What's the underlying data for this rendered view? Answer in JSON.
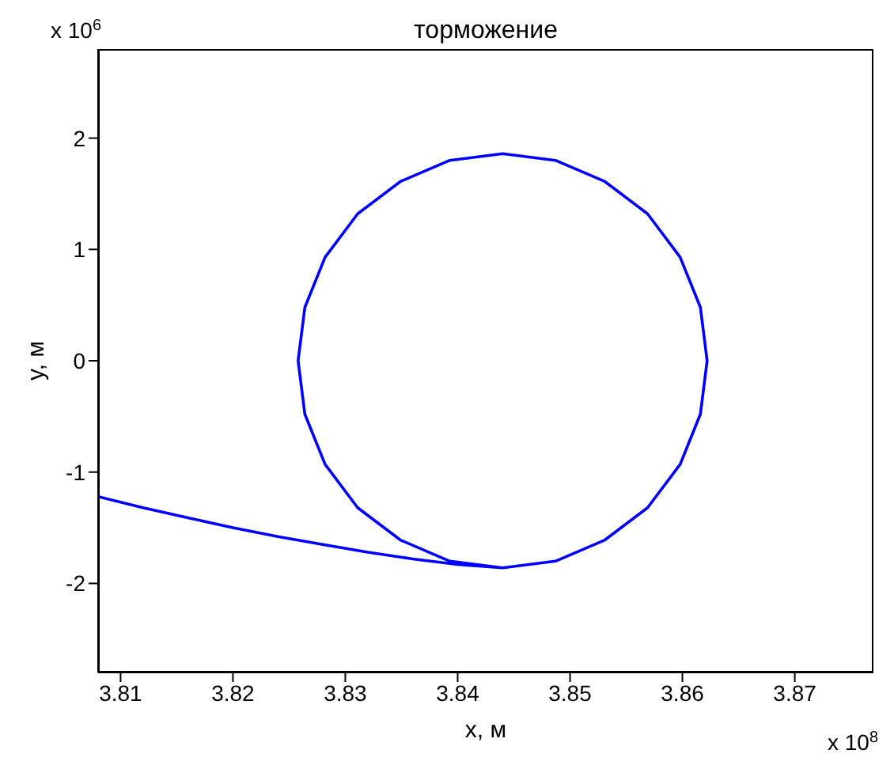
{
  "chart_data": {
    "type": "line",
    "title": "торможение",
    "xlabel": "x, м",
    "ylabel": "y, м",
    "annotations": [
      "x 10$^{6}$",
      "x 10$^{8}$"
    ],
    "xlim": [
      3.808,
      3.877
    ],
    "ylim": [
      -2.8,
      2.8
    ],
    "xticks": [
      3.81,
      3.82,
      3.83,
      3.84,
      3.85,
      3.86,
      3.87
    ],
    "yticks": [
      -2,
      -1,
      0,
      1,
      2
    ],
    "grid": false,
    "legend": false,
    "marker": "none",
    "line_style": "solid",
    "series": [
      {
        "color": "#0000ff",
        "x": [
          3.808,
          3.812,
          3.816,
          3.82,
          3.824,
          3.828,
          3.832,
          3.836,
          3.84,
          3.844,
          3.8487,
          3.8531,
          3.8569,
          3.8598,
          3.8616,
          3.8622,
          3.8616,
          3.8598,
          3.8569,
          3.8531,
          3.8487,
          3.844,
          3.8393,
          3.8349,
          3.8311,
          3.8282,
          3.8264,
          3.8258,
          3.8264,
          3.8282,
          3.8311,
          3.8349,
          3.8393,
          3.844
        ],
        "values": [
          -1.22,
          -1.32,
          -1.41,
          -1.5,
          -1.58,
          -1.65,
          -1.72,
          -1.78,
          -1.83,
          -1.86,
          -1.8,
          -1.61,
          -1.32,
          -0.93,
          -0.48,
          0,
          0.48,
          0.93,
          1.32,
          1.61,
          1.8,
          1.86,
          1.8,
          1.61,
          1.32,
          0.93,
          0.48,
          0,
          -0.48,
          -0.93,
          -1.32,
          -1.61,
          -1.8,
          -1.86
        ]
      }
    ]
  }
}
